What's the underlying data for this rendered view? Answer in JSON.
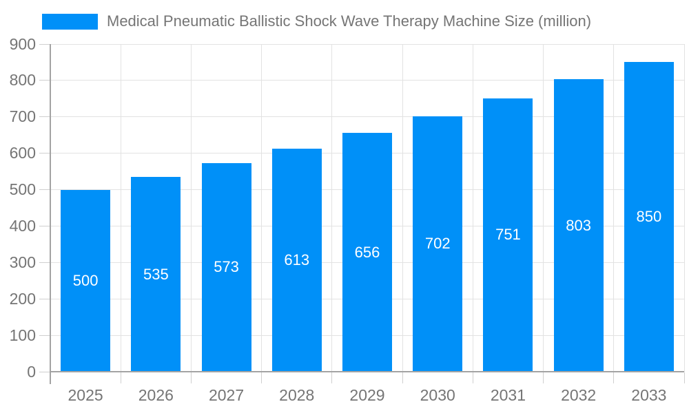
{
  "chart_data": {
    "type": "bar",
    "title": "Medical Pneumatic Ballistic Shock Wave Therapy Machine Size (million)",
    "categories": [
      "2025",
      "2026",
      "2027",
      "2028",
      "2029",
      "2030",
      "2031",
      "2032",
      "2033"
    ],
    "values": [
      500,
      535,
      573,
      613,
      656,
      702,
      751,
      803,
      850
    ],
    "xlabel": "",
    "ylabel": "",
    "ylim": [
      0,
      900
    ],
    "ytick_step": 100,
    "ytick_labels": [
      "0",
      "100",
      "200",
      "300",
      "400",
      "500",
      "600",
      "700",
      "800",
      "900"
    ],
    "grid": true,
    "legend_position": "top-left",
    "value_labels_inside_bars": true,
    "colors": {
      "bar": "#0090f8",
      "axis_text": "#757575",
      "value_text": "#ffffff",
      "gridline": "#e2e2e2",
      "axis_line": "#a3a3a3",
      "tick": "#cfcfcf"
    }
  },
  "legend": {
    "label": "Medical Pneumatic Ballistic Shock Wave Therapy Machine Size (million)"
  }
}
